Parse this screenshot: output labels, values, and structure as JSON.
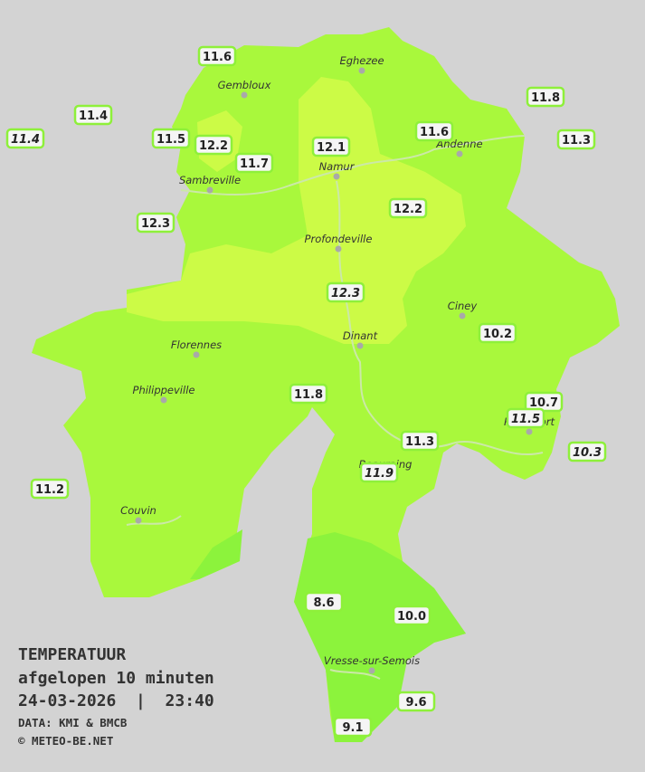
{
  "title": {
    "heading": "TEMPERATUUR",
    "period": "afgelopen 10 minuten",
    "datetime": "24-03-2026  |  23:40",
    "source": "DATA: KMI & BMCB",
    "credit": "© METEO-BE.NET"
  },
  "cities": [
    "Eghezee",
    "Gembloux",
    "Andenne",
    "Namur",
    "Sambreville",
    "Profondeville",
    "Ciney",
    "Dinant",
    "Florennes",
    "Philippeville",
    "Rochefort",
    "Beauraing",
    "Couvin",
    "Vresse-sur-Semois"
  ],
  "stations": [
    11.6,
    11.4,
    11.4,
    11.5,
    12.2,
    11.7,
    12.1,
    11.6,
    11.8,
    11.3,
    12.3,
    12.2,
    12.3,
    10.2,
    11.8,
    10.7,
    11.5,
    11.3,
    10.3,
    11.9,
    11.2,
    8.6,
    {
      "value": 10,
      "label": "10.0"
    },
    9.6,
    9.1
  ]
}
